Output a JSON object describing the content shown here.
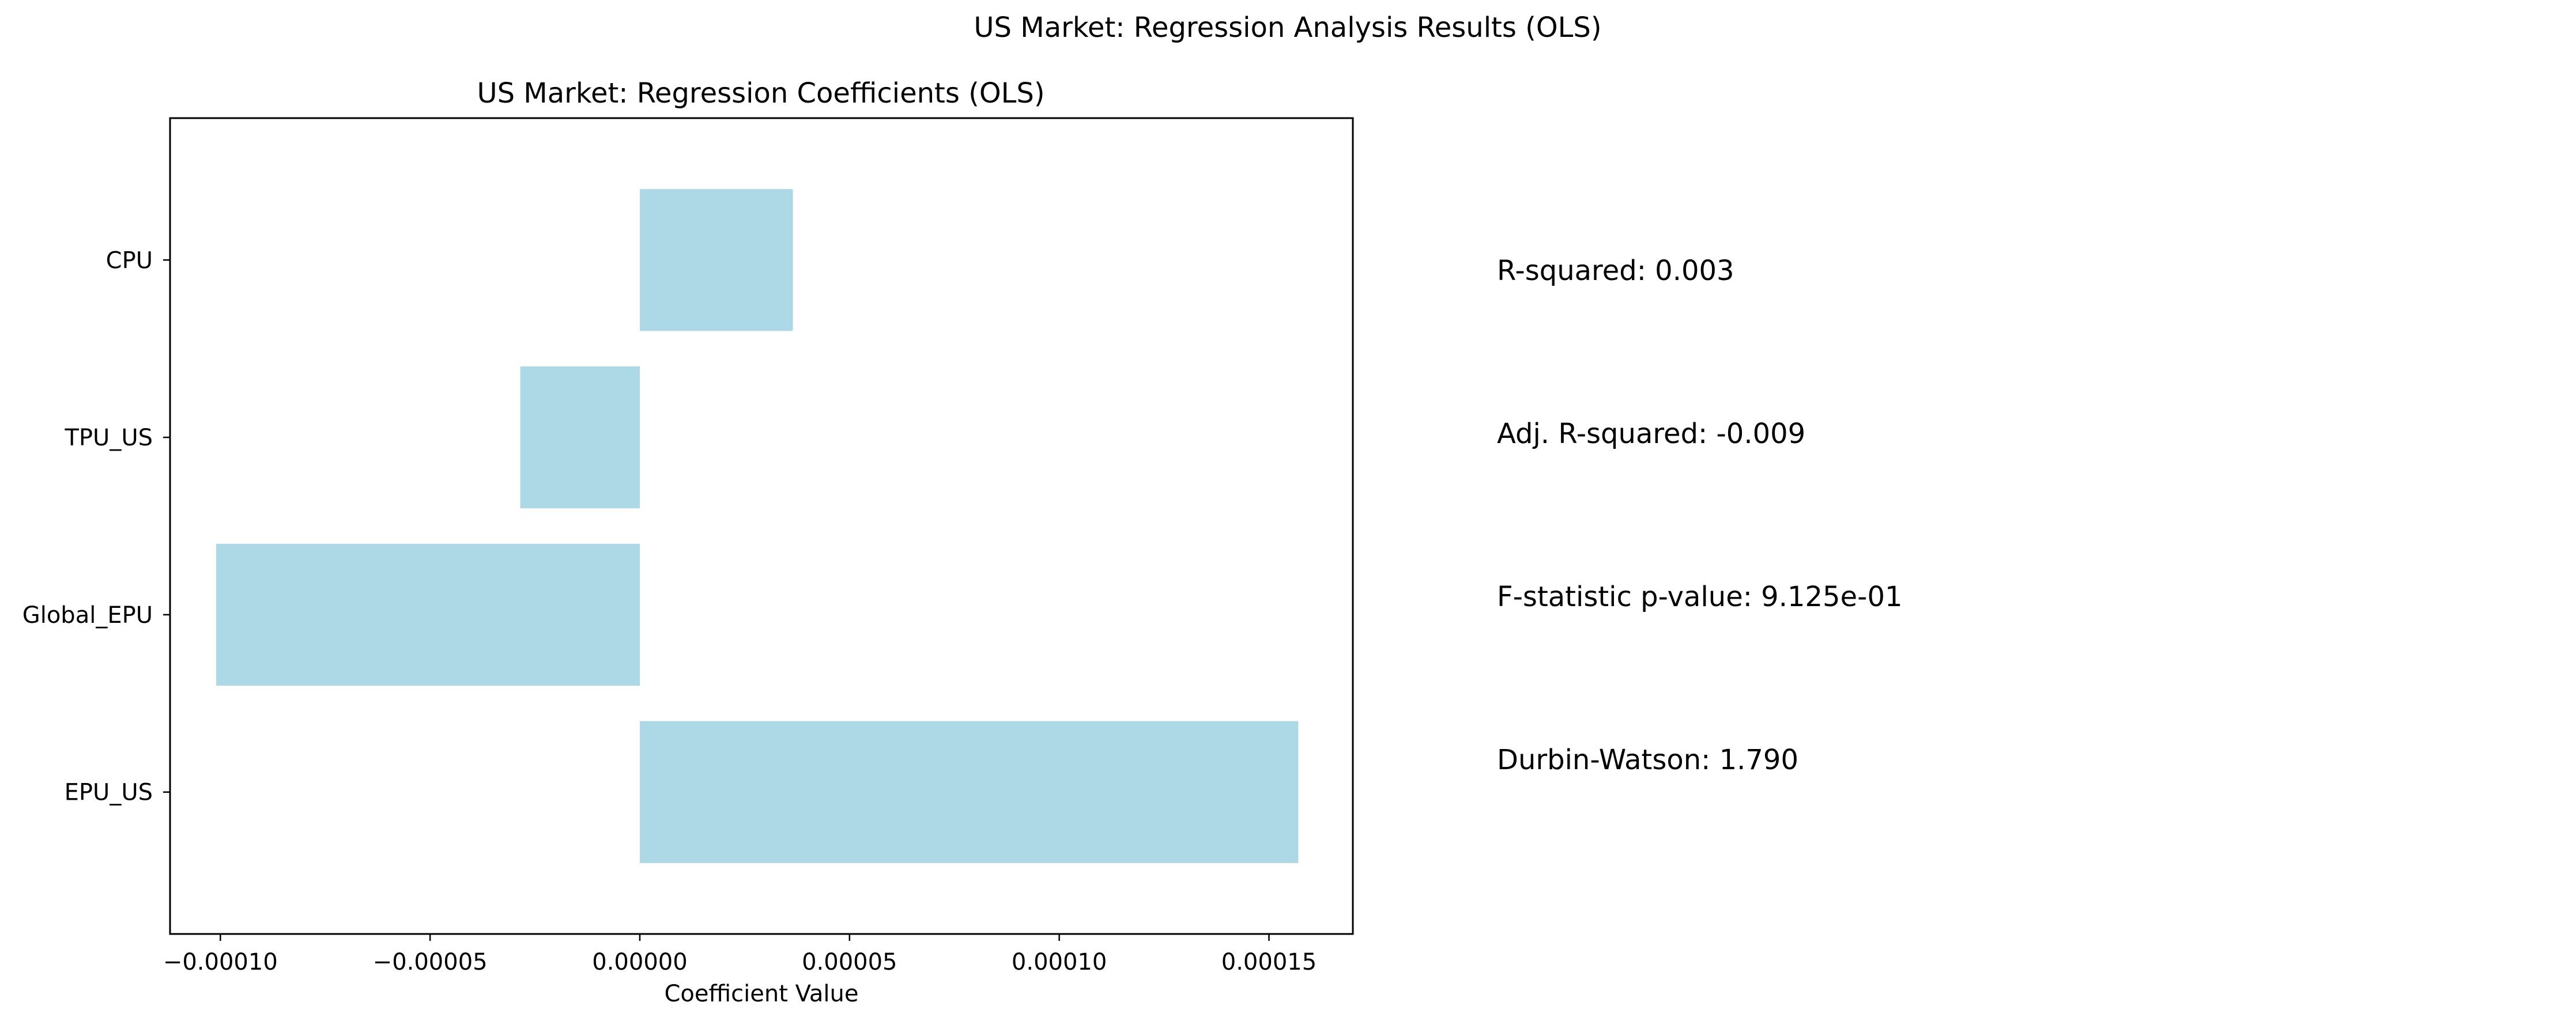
{
  "figure": {
    "suptitle": "US Market: Regression Analysis Results (OLS)"
  },
  "colors": {
    "bar": "#add8e6",
    "axes": "#000000",
    "background": "#ffffff"
  },
  "chart_data": {
    "type": "bar",
    "orientation": "horizontal",
    "title": "US Market: Regression Coefficients (OLS)",
    "xlabel": "Coefficient Value",
    "ylabel": "",
    "categories": [
      "EPU_US",
      "Global_EPU",
      "TPU_US",
      "CPU"
    ],
    "values": [
      0.000157,
      -0.000101,
      -2.85e-05,
      3.65e-05
    ],
    "xlim": [
      -0.000112,
      0.00017
    ],
    "xticks": [
      -0.0001,
      -5e-05,
      0.0,
      5e-05,
      0.0001,
      0.00015
    ],
    "xtick_labels": [
      "−0.00010",
      "−0.00005",
      "0.00000",
      "0.00005",
      "0.00010",
      "0.00015"
    ],
    "grid": false,
    "legend": "none"
  },
  "stats": [
    {
      "text": "R-squared: 0.003"
    },
    {
      "text": "Adj. R-squared: -0.009"
    },
    {
      "text": "F-statistic p-value: 9.125e-01"
    },
    {
      "text": "Durbin-Watson: 1.790"
    }
  ]
}
